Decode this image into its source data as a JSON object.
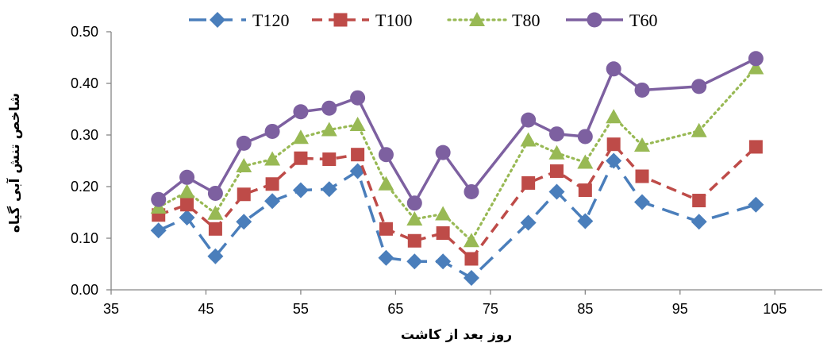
{
  "chart_data": {
    "type": "line",
    "xlabel": "روز بعد از کاشت",
    "ylabel": "شاخص تنش آبی گیاه",
    "xlim": [
      35,
      110
    ],
    "ylim": [
      0,
      0.5
    ],
    "xticks": [
      35,
      45,
      55,
      65,
      75,
      85,
      95,
      105
    ],
    "yticks": [
      0.0,
      0.1,
      0.2,
      0.3,
      0.4,
      0.5
    ],
    "xtick_labels": [
      "35",
      "45",
      "55",
      "65",
      "75",
      "85",
      "95",
      "105"
    ],
    "ytick_labels": [
      "0.00",
      "0.10",
      "0.20",
      "0.30",
      "0.40",
      "0.50"
    ],
    "grid": false,
    "legend_position": "top",
    "x": [
      40,
      43,
      46,
      49,
      52,
      55,
      58,
      61,
      64,
      67,
      70,
      73,
      79,
      82,
      85,
      88,
      91,
      97,
      103
    ],
    "series": [
      {
        "name": "T120",
        "color": "#4a7ebb",
        "line_style": "long-dash",
        "marker": "diamond",
        "values": [
          0.115,
          0.14,
          0.065,
          0.132,
          0.172,
          0.193,
          0.195,
          0.23,
          0.062,
          0.055,
          0.055,
          0.023,
          0.13,
          0.19,
          0.133,
          0.25,
          0.17,
          0.132,
          0.165
        ]
      },
      {
        "name": "T100",
        "color": "#be4b48",
        "line_style": "dash",
        "marker": "square",
        "values": [
          0.145,
          0.165,
          0.118,
          0.185,
          0.205,
          0.255,
          0.253,
          0.262,
          0.118,
          0.095,
          0.11,
          0.06,
          0.207,
          0.23,
          0.193,
          0.282,
          0.22,
          0.173,
          0.277
        ]
      },
      {
        "name": "T80",
        "color": "#98b954",
        "line_style": "dotted",
        "marker": "triangle",
        "values": [
          0.16,
          0.19,
          0.148,
          0.24,
          0.253,
          0.295,
          0.31,
          0.32,
          0.205,
          0.137,
          0.147,
          0.095,
          0.29,
          0.265,
          0.247,
          0.335,
          0.28,
          0.308,
          0.43
        ]
      },
      {
        "name": "T60",
        "color": "#7d60a0",
        "line_style": "solid",
        "marker": "circle",
        "values": [
          0.175,
          0.218,
          0.187,
          0.284,
          0.307,
          0.345,
          0.352,
          0.372,
          0.262,
          0.168,
          0.266,
          0.19,
          0.329,
          0.302,
          0.297,
          0.428,
          0.387,
          0.394,
          0.448
        ]
      }
    ]
  }
}
